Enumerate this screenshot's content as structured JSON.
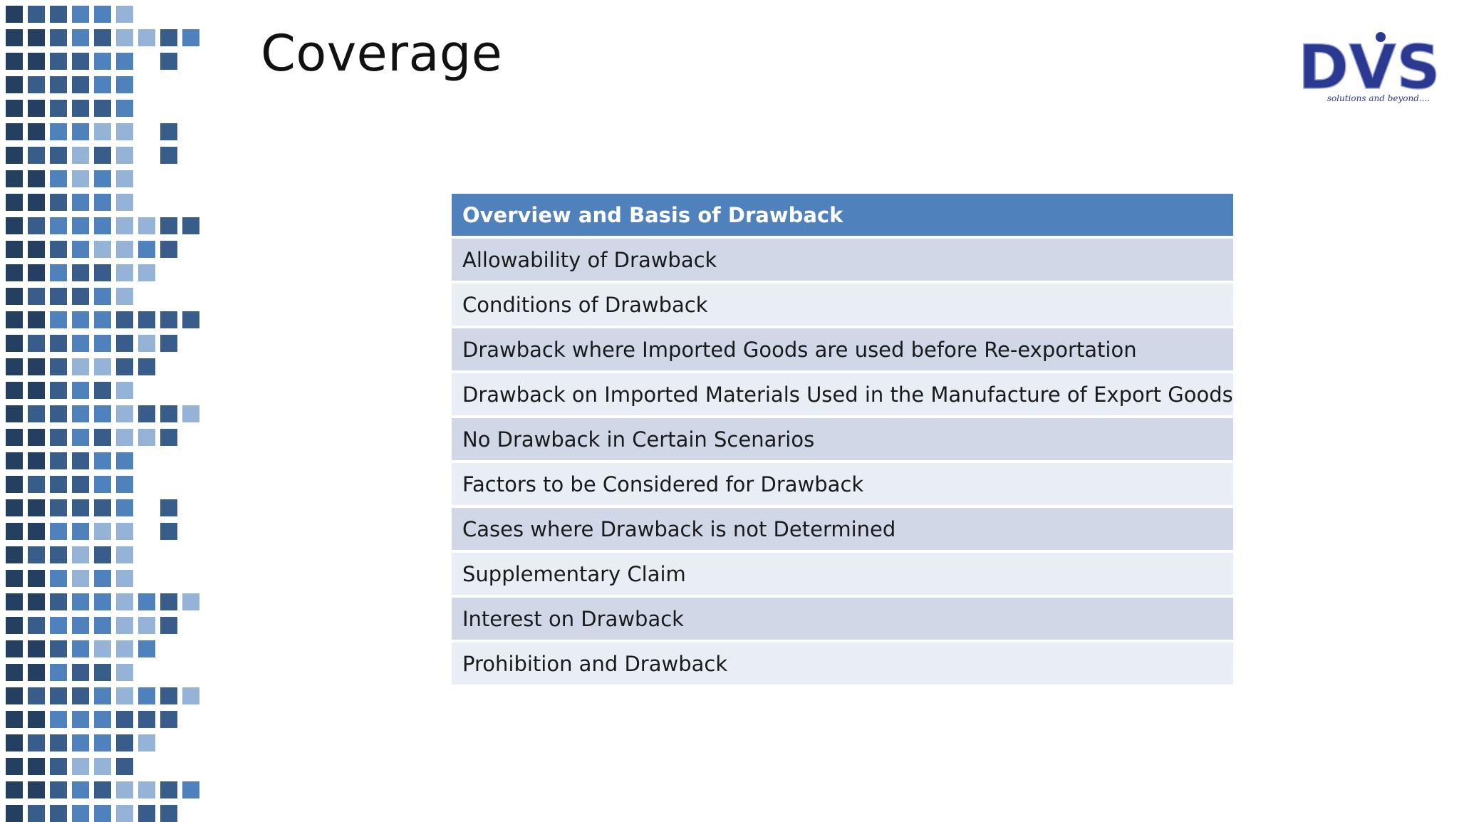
{
  "slide": {
    "title": "Coverage"
  },
  "logo": {
    "text": "DVS",
    "tagline": "solutions and beyond....",
    "brand_color": "#2b3990"
  },
  "colors": {
    "header_bg": "#4f81bd",
    "row_band_1": "#d0d8e8",
    "row_band_2": "#e9edf4",
    "mosaic": [
      "#243f60",
      "#385d8a",
      "#4f81bd",
      "#95b3d7"
    ]
  },
  "table": {
    "header": "Overview and Basis of Drawback",
    "rows": [
      "Allowability of Drawback",
      "Conditions of Drawback",
      "Drawback where Imported Goods are used before Re-exportation",
      "Drawback on Imported Materials Used in the Manufacture of Export Goods",
      "No Drawback in Certain Scenarios",
      "Factors to be Considered for Drawback",
      "Cases where Drawback is not Determined",
      "Supplementary Claim",
      "Interest on Drawback",
      "Prohibition and Drawback"
    ]
  }
}
